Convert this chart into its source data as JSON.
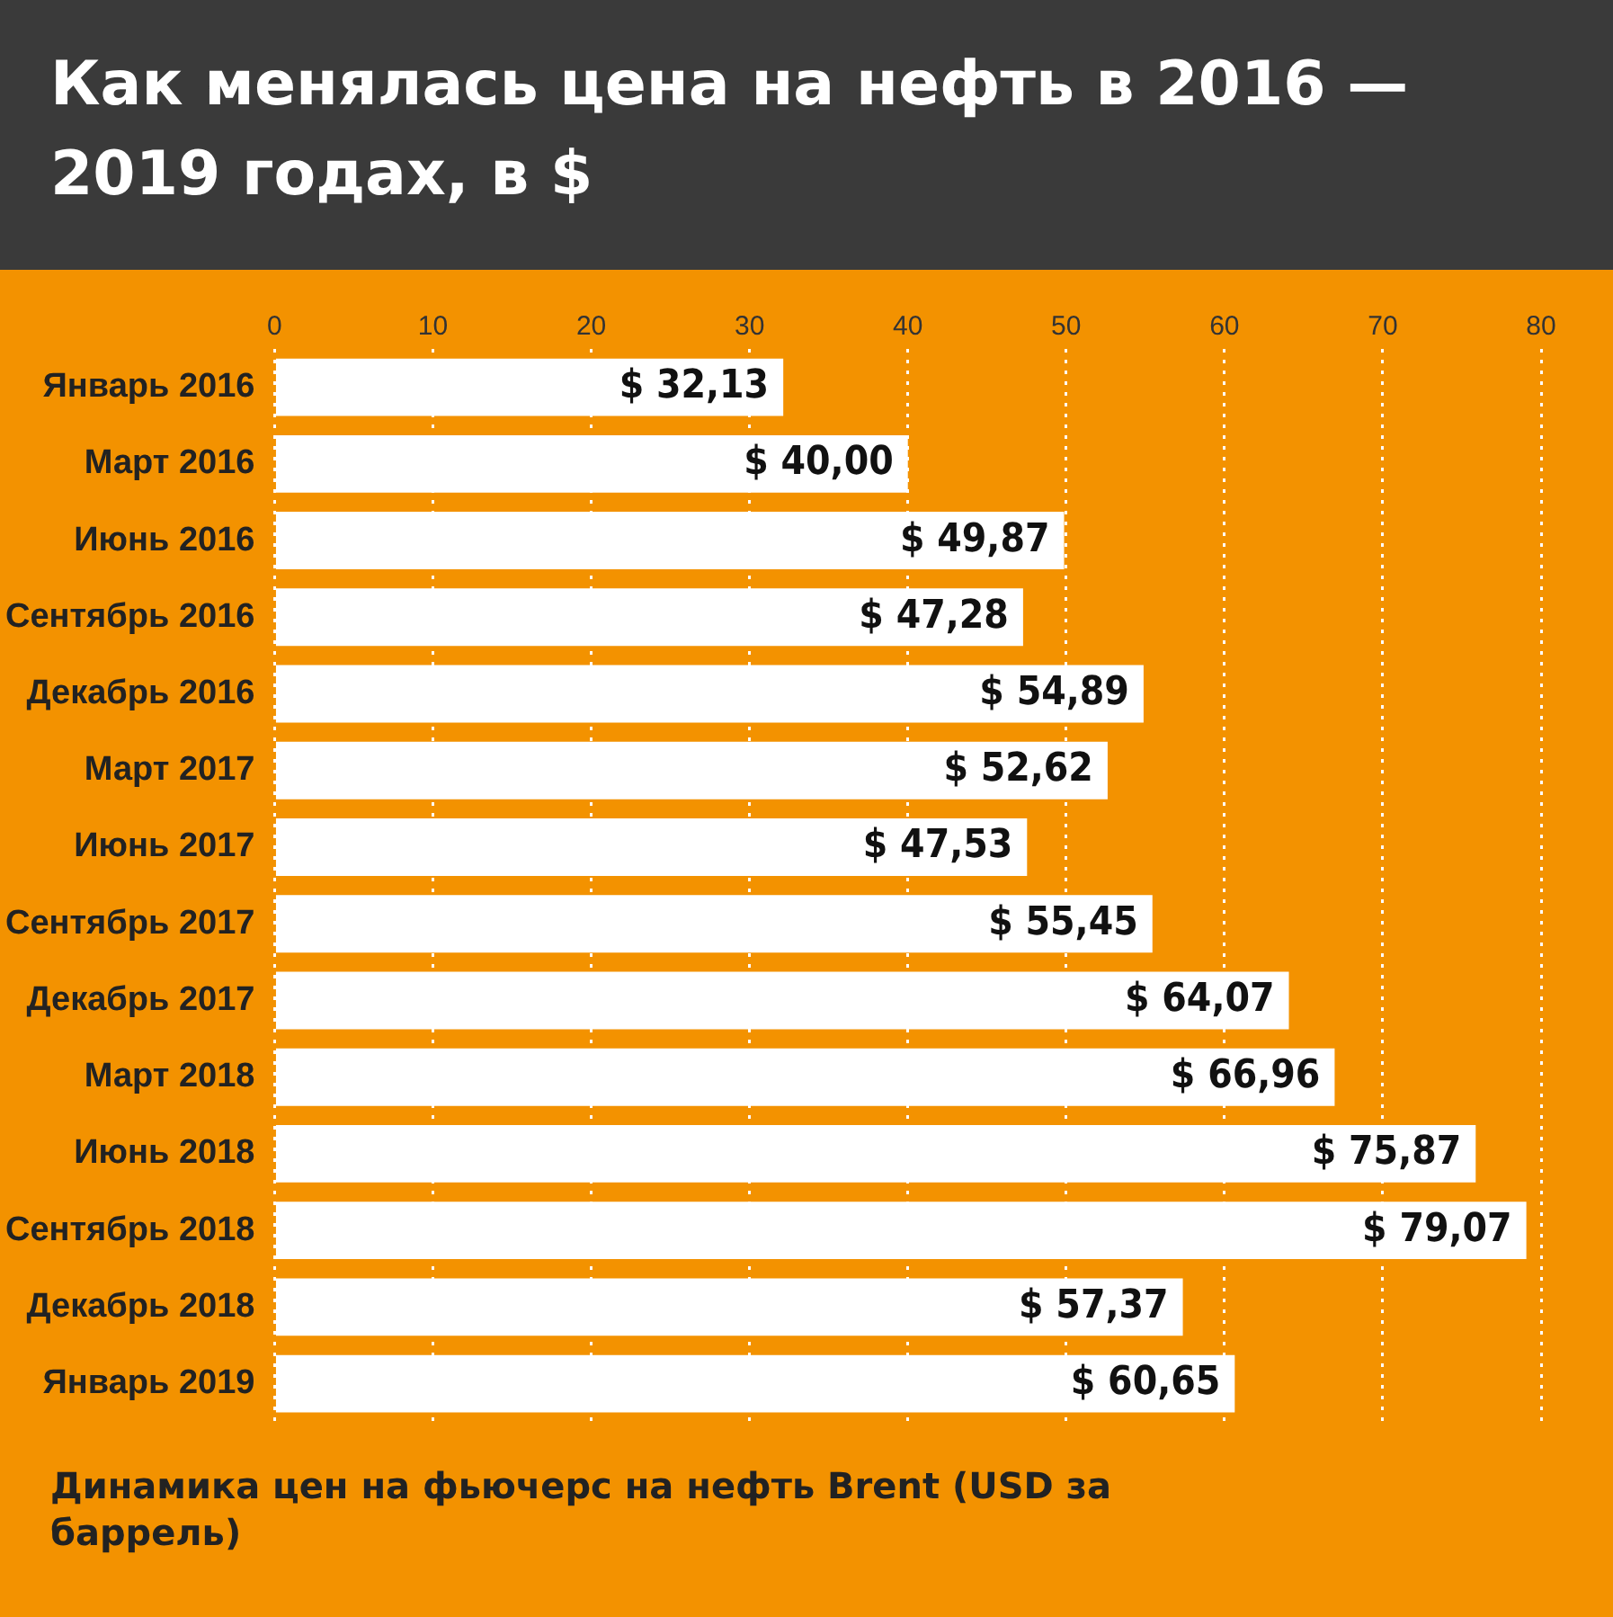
{
  "chart_data": {
    "type": "bar",
    "orientation": "horizontal",
    "title": "Как менялась цена на нефть в 2016 — 2019 годах, в $",
    "categories": [
      "Январь 2016",
      "Март 2016",
      "Июнь 2016",
      "Сентябрь 2016",
      "Декабрь 2016",
      "Март 2017",
      "Июнь 2017",
      "Сентябрь 2017",
      "Декабрь 2017",
      "Март 2018",
      "Июнь 2018",
      "Сентябрь 2018",
      "Декабрь 2018",
      "Январь 2019"
    ],
    "values": [
      32.13,
      40.0,
      49.87,
      47.28,
      54.89,
      52.62,
      47.53,
      55.45,
      64.07,
      66.96,
      75.87,
      79.07,
      57.37,
      60.65
    ],
    "value_labels": [
      "$ 32,13",
      "$ 40,00",
      "$ 49,87",
      "$ 47,28",
      "$ 54,89",
      "$ 52,62",
      "$ 47,53",
      "$ 55,45",
      "$ 64,07",
      "$ 66,96",
      "$ 75,87",
      "$ 79,07",
      "$ 57,37",
      "$ 60,65"
    ],
    "color": "#ffffff",
    "xlim": [
      0,
      80
    ],
    "xticks": [
      0,
      10,
      20,
      30,
      40,
      50,
      60,
      70,
      80
    ],
    "grid": "x",
    "legend": false,
    "annotations": [
      "Динамика цен на фьючерс на нефть Brent (USD за баррель)"
    ]
  }
}
